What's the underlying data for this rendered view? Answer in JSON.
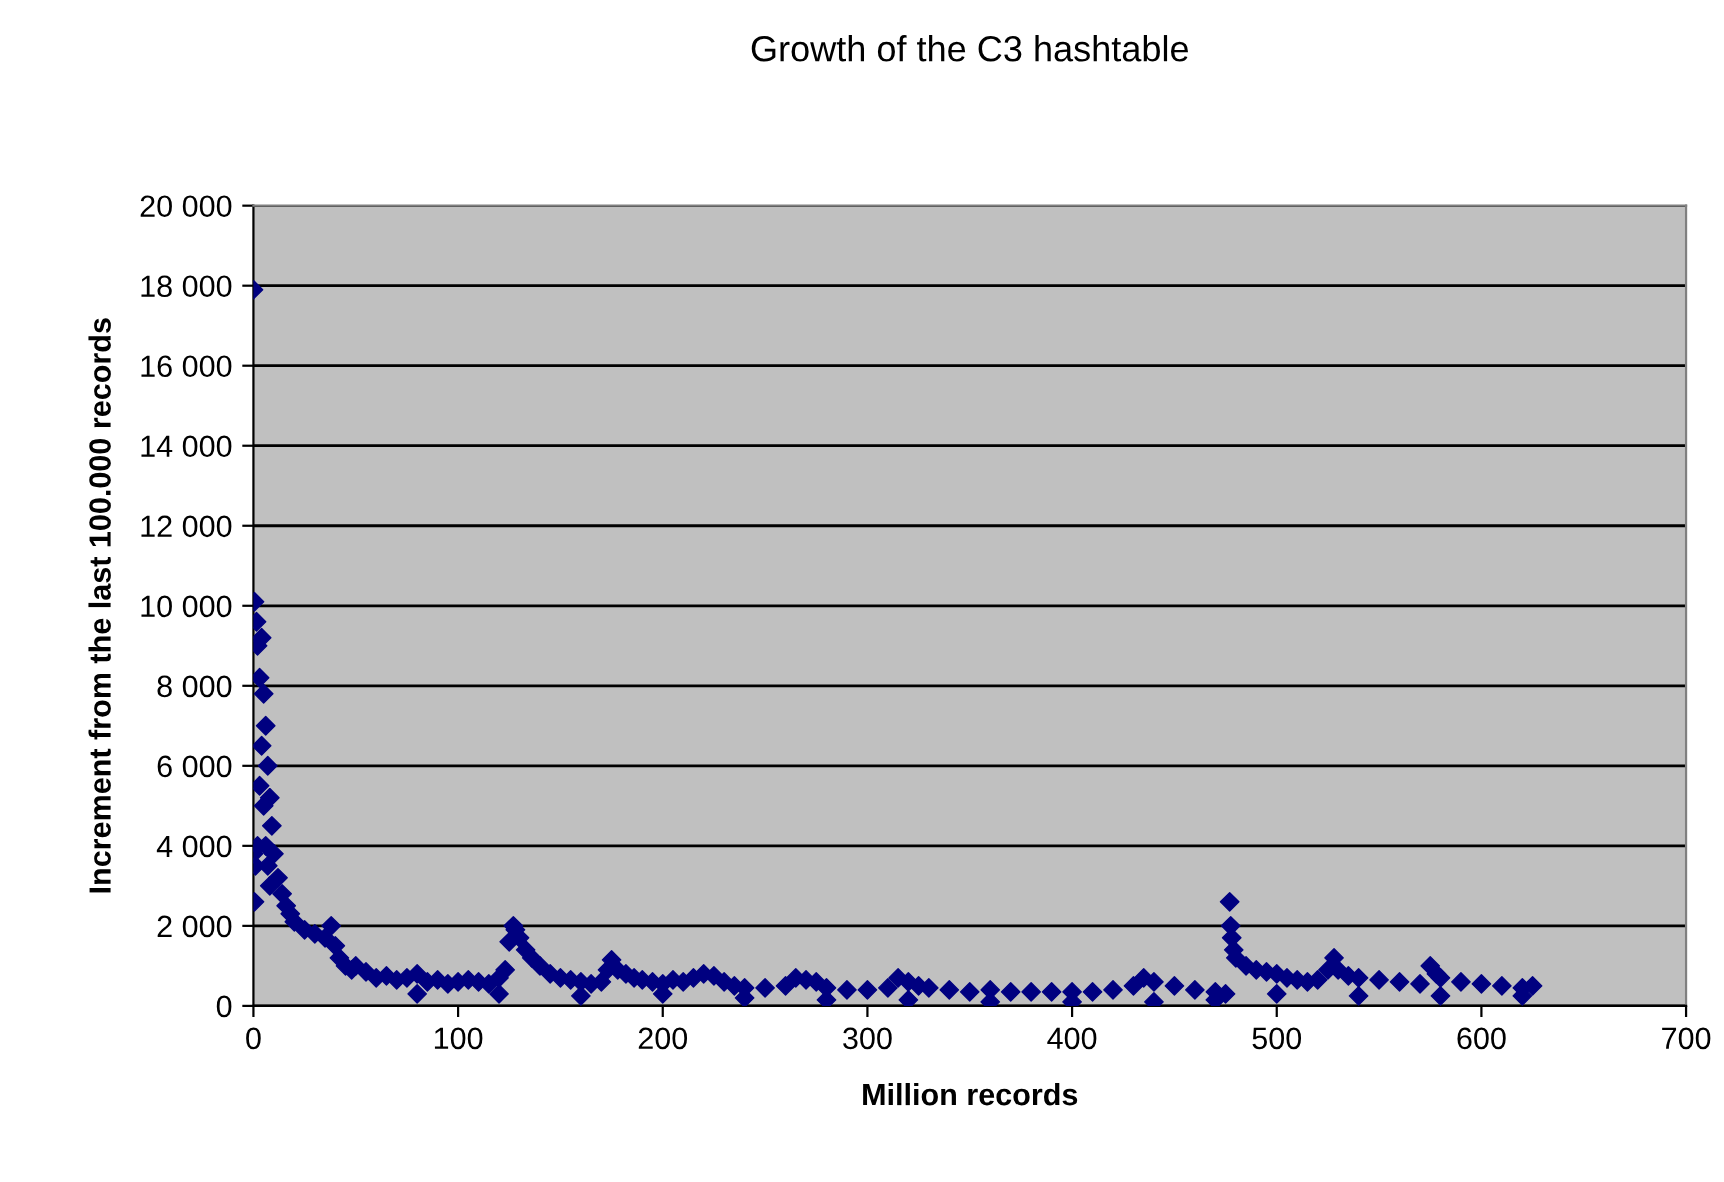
{
  "chart_data": {
    "type": "scatter",
    "title": "Growth of the C3 hashtable",
    "xlabel": "Million records",
    "ylabel": "Increment from the last 100.000 records",
    "xlim": [
      0,
      700
    ],
    "xticks": [
      0,
      100,
      200,
      300,
      400,
      500,
      600,
      700
    ],
    "ylim": [
      0,
      20000
    ],
    "yticks": [
      {
        "value": 0,
        "label": "0"
      },
      {
        "value": 2000,
        "label": "2 000"
      },
      {
        "value": 4000,
        "label": "4 000"
      },
      {
        "value": 6000,
        "label": "6 000"
      },
      {
        "value": 8000,
        "label": "8 000"
      },
      {
        "value": 10000,
        "label": "10 000"
      },
      {
        "value": 12000,
        "label": "12 000"
      },
      {
        "value": 14000,
        "label": "14 000"
      },
      {
        "value": 16000,
        "label": "16 000"
      },
      {
        "value": 18000,
        "label": "18 000"
      },
      {
        "value": 20000,
        "label": "20 000"
      }
    ],
    "grid": "y",
    "marker": "diamond",
    "series": [
      {
        "color": "#000080",
        "x": [
          0,
          0.5,
          0,
          0.5,
          1,
          1.5,
          2,
          2,
          3,
          3,
          4,
          4,
          5,
          5,
          6,
          6,
          7,
          7,
          8,
          8,
          9,
          10,
          12,
          14,
          16,
          18,
          20,
          25,
          30,
          35,
          38,
          40,
          42,
          45,
          48,
          50,
          55,
          60,
          65,
          70,
          75,
          80,
          85,
          90,
          95,
          100,
          105,
          110,
          115,
          120,
          123,
          125,
          127,
          128,
          130,
          133,
          136,
          140,
          145,
          150,
          155,
          160,
          165,
          170,
          173,
          175,
          178,
          182,
          186,
          190,
          195,
          200,
          205,
          210,
          215,
          220,
          225,
          230,
          235,
          240,
          250,
          260,
          265,
          270,
          275,
          280,
          290,
          300,
          310,
          315,
          320,
          325,
          330,
          340,
          350,
          360,
          370,
          380,
          390,
          400,
          410,
          420,
          430,
          435,
          440,
          450,
          460,
          470,
          475,
          477,
          477.5,
          478,
          479,
          480,
          485,
          490,
          495,
          500,
          505,
          510,
          515,
          520,
          525,
          528,
          530,
          535,
          540,
          550,
          560,
          570,
          575,
          578,
          580,
          590,
          600,
          610,
          620,
          625,
          80,
          120,
          160,
          200,
          240,
          280,
          320,
          360,
          400,
          440,
          470,
          500,
          540,
          580,
          620
        ],
        "values": [
          17900,
          10100,
          3800,
          2600,
          3500,
          9600,
          9000,
          4000,
          8200,
          5500,
          9200,
          6500,
          7800,
          5000,
          7000,
          4000,
          6000,
          3500,
          5200,
          3000,
          4500,
          3800,
          3200,
          2800,
          2500,
          2300,
          2100,
          1900,
          1800,
          1700,
          2000,
          1500,
          1200,
          1000,
          900,
          1000,
          850,
          700,
          750,
          650,
          700,
          800,
          600,
          650,
          550,
          600,
          650,
          600,
          550,
          700,
          900,
          1600,
          2000,
          1900,
          1700,
          1400,
          1200,
          1000,
          800,
          700,
          650,
          600,
          550,
          600,
          900,
          1150,
          900,
          800,
          700,
          650,
          600,
          550,
          650,
          600,
          700,
          800,
          750,
          600,
          500,
          450,
          450,
          500,
          700,
          650,
          600,
          450,
          400,
          400,
          450,
          700,
          600,
          500,
          450,
          400,
          350,
          400,
          350,
          350,
          350,
          350,
          350,
          400,
          500,
          700,
          600,
          500,
          400,
          350,
          300,
          2600,
          2000,
          1700,
          1400,
          1200,
          1000,
          900,
          850,
          800,
          700,
          650,
          600,
          650,
          900,
          1200,
          900,
          750,
          700,
          650,
          600,
          550,
          1000,
          800,
          700,
          600,
          550,
          500,
          450,
          500,
          300,
          300,
          250,
          300,
          200,
          150,
          150,
          100,
          100,
          100,
          150,
          300,
          250,
          250,
          250
        ]
      }
    ]
  }
}
